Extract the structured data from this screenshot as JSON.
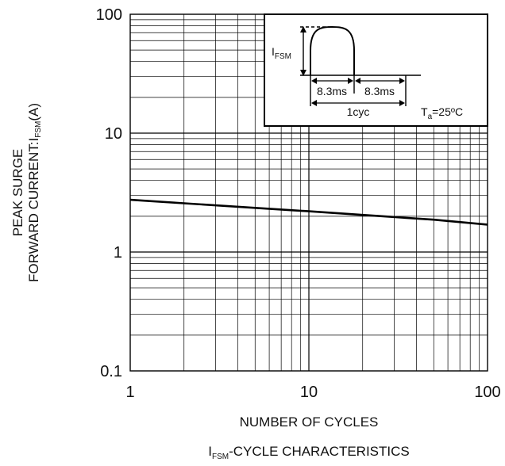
{
  "chart_data": {
    "type": "line",
    "title": "",
    "caption": {
      "main": "I",
      "sub": "FSM",
      "rest": "-CYCLE CHARACTERISTICS"
    },
    "xlabel": "NUMBER OF CYCLES",
    "ylabel": {
      "line1": "PEAK SURGE",
      "line2_main": "FORWARD CURRENT:I",
      "line2_sub": "FSM",
      "line2_rest": "(A)"
    },
    "xscale": "log",
    "yscale": "log",
    "xlim": [
      1,
      100
    ],
    "ylim": [
      0.1,
      100
    ],
    "x_ticks": [
      {
        "value": 1,
        "label": "1"
      },
      {
        "value": 10,
        "label": "10"
      },
      {
        "value": 100,
        "label": "100"
      }
    ],
    "y_ticks": [
      {
        "value": 0.1,
        "label": "0.1"
      },
      {
        "value": 1,
        "label": "1"
      },
      {
        "value": 10,
        "label": "10"
      },
      {
        "value": 100,
        "label": "100"
      }
    ],
    "grid": true,
    "series": [
      {
        "x": [
          1,
          2,
          5,
          10,
          20,
          50,
          100
        ],
        "y": [
          2.75,
          2.57,
          2.35,
          2.2,
          2.05,
          1.87,
          1.7
        ]
      }
    ],
    "inset": {
      "ifsm_main": "I",
      "ifsm_sub": "FSM",
      "half_cycle_label": "8.3ms",
      "second_half_label": "8.3ms",
      "cycle_label": "1cyc",
      "temp_main": "T",
      "temp_sub": "a",
      "temp_rest": "=25ºC"
    },
    "colors": {
      "line": "#000000",
      "grid": "#000000"
    }
  }
}
